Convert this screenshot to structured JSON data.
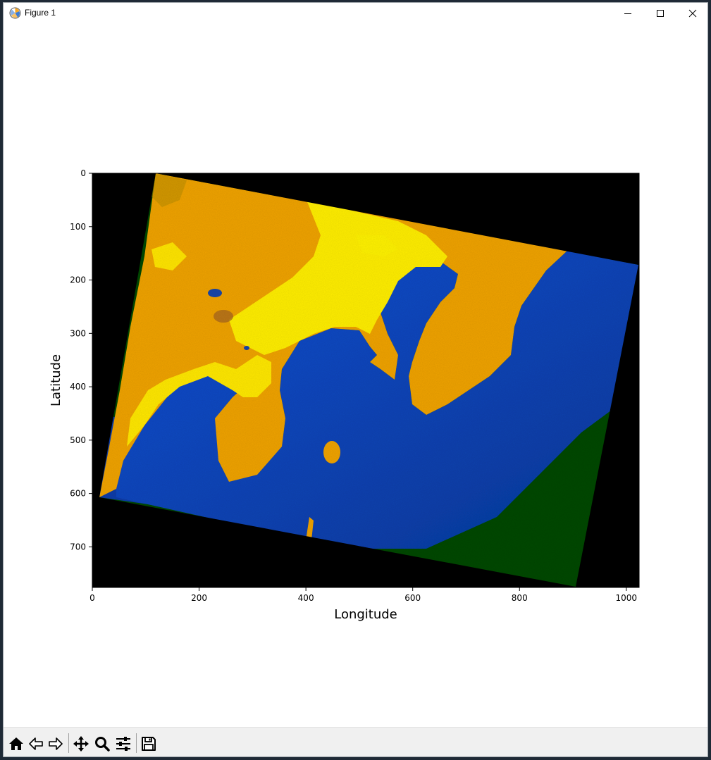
{
  "window": {
    "title": "Figure 1",
    "controls": [
      "minimize",
      "maximize",
      "close"
    ]
  },
  "toolbar": {
    "buttons": [
      {
        "name": "home",
        "icon": "home-icon"
      },
      {
        "name": "back",
        "icon": "arrow-left-icon"
      },
      {
        "name": "forward",
        "icon": "arrow-right-icon"
      },
      {
        "name": "pan",
        "icon": "move-icon"
      },
      {
        "name": "zoom",
        "icon": "magnifier-icon"
      },
      {
        "name": "configure-subplots",
        "icon": "sliders-icon"
      },
      {
        "name": "save",
        "icon": "floppy-disk-icon"
      }
    ]
  },
  "figure": {
    "xlabel": "Longitude",
    "ylabel": "Latitude",
    "xticks": [
      "0",
      "200",
      "400",
      "600",
      "800",
      "1000"
    ],
    "yticks": [
      "0",
      "100",
      "200",
      "300",
      "400",
      "500",
      "600",
      "700"
    ],
    "xlim": [
      0,
      1024
    ],
    "ylim": [
      776,
      0
    ],
    "image": "false-color satellite scene: orange/yellow land, blue water, dark green offshore area, black no-data border",
    "colors": {
      "nodata": "#000000",
      "land": "#f0a400",
      "urban": "#ffff00",
      "water": "#1846c8",
      "offshore": "#0b4a00"
    }
  }
}
